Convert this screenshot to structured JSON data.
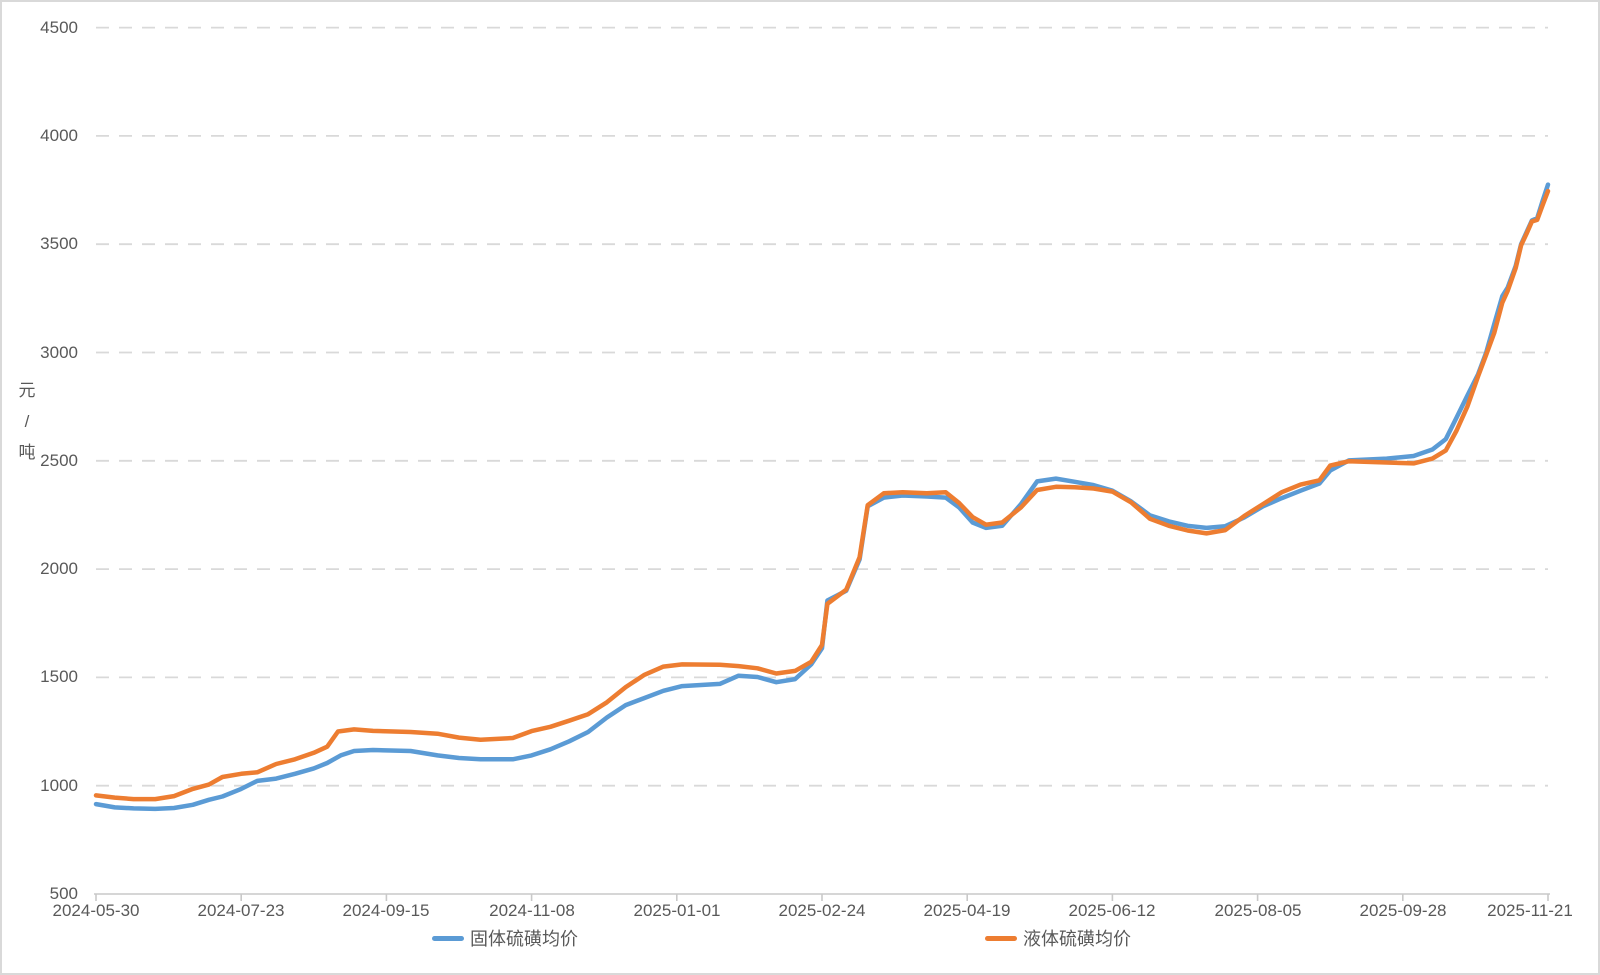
{
  "chart_data": {
    "type": "line",
    "title": "",
    "y_axis": {
      "title": "元\n/\n吨",
      "min": 500,
      "max": 4500,
      "step": 500,
      "ticks": [
        "4500",
        "4000",
        "3500",
        "3000",
        "2500",
        "2000",
        "1500",
        "1000",
        "500"
      ]
    },
    "x_axis": {
      "start": "2024-05-30",
      "end": "2025-11-21",
      "ticks": [
        "2024-05-30",
        "2024-07-23",
        "2024-09-15",
        "2024-11-08",
        "2025-01-01",
        "2025-02-24",
        "2025-04-19",
        "2025-06-12",
        "2025-08-05",
        "2025-09-28",
        "2025-11-21"
      ]
    },
    "grid": "horizontal-dashed",
    "legend_position": "bottom",
    "colors": {
      "solid_series": "#5B9BD5",
      "liquid_series": "#ED7D31",
      "axis_text": "#595959",
      "gridline": "#D9D9D9",
      "axis_line": "#C9C9C9",
      "frame": "#D9D9D9"
    },
    "series": [
      {
        "name": "固体硫磺均价",
        "color": "#5B9BD5",
        "points": [
          [
            "2024-05-30",
            915
          ],
          [
            "2024-06-06",
            900
          ],
          [
            "2024-06-13",
            895
          ],
          [
            "2024-06-21",
            893
          ],
          [
            "2024-06-28",
            897
          ],
          [
            "2024-07-05",
            912
          ],
          [
            "2024-07-11",
            935
          ],
          [
            "2024-07-16",
            950
          ],
          [
            "2024-07-23",
            985
          ],
          [
            "2024-07-29",
            1022
          ],
          [
            "2024-08-05",
            1033
          ],
          [
            "2024-08-12",
            1055
          ],
          [
            "2024-08-19",
            1080
          ],
          [
            "2024-08-24",
            1105
          ],
          [
            "2024-08-29",
            1140
          ],
          [
            "2024-09-03",
            1160
          ],
          [
            "2024-09-10",
            1165
          ],
          [
            "2024-09-24",
            1160
          ],
          [
            "2024-10-04",
            1140
          ],
          [
            "2024-10-12",
            1128
          ],
          [
            "2024-10-20",
            1122
          ],
          [
            "2024-11-01",
            1122
          ],
          [
            "2024-11-08",
            1140
          ],
          [
            "2024-11-15",
            1168
          ],
          [
            "2024-11-22",
            1205
          ],
          [
            "2024-11-29",
            1248
          ],
          [
            "2024-12-06",
            1315
          ],
          [
            "2024-12-13",
            1372
          ],
          [
            "2024-12-20",
            1405
          ],
          [
            "2024-12-27",
            1438
          ],
          [
            "2025-01-03",
            1460
          ],
          [
            "2025-01-17",
            1470
          ],
          [
            "2025-01-24",
            1508
          ],
          [
            "2025-01-31",
            1502
          ],
          [
            "2025-02-07",
            1478
          ],
          [
            "2025-02-14",
            1492
          ],
          [
            "2025-02-20",
            1560
          ],
          [
            "2025-02-24",
            1635
          ],
          [
            "2025-02-26",
            1855
          ],
          [
            "2025-03-05",
            1900
          ],
          [
            "2025-03-10",
            2045
          ],
          [
            "2025-03-13",
            2290
          ],
          [
            "2025-03-19",
            2330
          ],
          [
            "2025-03-26",
            2340
          ],
          [
            "2025-04-04",
            2335
          ],
          [
            "2025-04-11",
            2330
          ],
          [
            "2025-04-16",
            2285
          ],
          [
            "2025-04-21",
            2215
          ],
          [
            "2025-04-26",
            2190
          ],
          [
            "2025-05-02",
            2200
          ],
          [
            "2025-05-09",
            2300
          ],
          [
            "2025-05-15",
            2405
          ],
          [
            "2025-05-22",
            2418
          ],
          [
            "2025-05-29",
            2403
          ],
          [
            "2025-06-05",
            2388
          ],
          [
            "2025-06-12",
            2362
          ],
          [
            "2025-06-19",
            2312
          ],
          [
            "2025-06-26",
            2248
          ],
          [
            "2025-07-03",
            2220
          ],
          [
            "2025-07-10",
            2200
          ],
          [
            "2025-07-17",
            2190
          ],
          [
            "2025-07-24",
            2198
          ],
          [
            "2025-07-31",
            2238
          ],
          [
            "2025-08-07",
            2290
          ],
          [
            "2025-08-14",
            2328
          ],
          [
            "2025-08-21",
            2362
          ],
          [
            "2025-08-28",
            2395
          ],
          [
            "2025-09-01",
            2455
          ],
          [
            "2025-09-08",
            2502
          ],
          [
            "2025-09-22",
            2510
          ],
          [
            "2025-10-02",
            2522
          ],
          [
            "2025-10-09",
            2552
          ],
          [
            "2025-10-14",
            2600
          ],
          [
            "2025-10-18",
            2700
          ],
          [
            "2025-10-22",
            2800
          ],
          [
            "2025-10-26",
            2900
          ],
          [
            "2025-10-29",
            3000
          ],
          [
            "2025-11-01",
            3130
          ],
          [
            "2025-11-04",
            3260
          ],
          [
            "2025-11-06",
            3300
          ],
          [
            "2025-11-09",
            3400
          ],
          [
            "2025-11-11",
            3500
          ],
          [
            "2025-11-13",
            3555
          ],
          [
            "2025-11-15",
            3610
          ],
          [
            "2025-11-17",
            3620
          ],
          [
            "2025-11-19",
            3700
          ],
          [
            "2025-11-21",
            3775
          ]
        ]
      },
      {
        "name": "液体硫磺均价",
        "color": "#ED7D31",
        "points": [
          [
            "2024-05-30",
            955
          ],
          [
            "2024-06-06",
            945
          ],
          [
            "2024-06-13",
            938
          ],
          [
            "2024-06-21",
            938
          ],
          [
            "2024-06-28",
            952
          ],
          [
            "2024-07-05",
            985
          ],
          [
            "2024-07-11",
            1005
          ],
          [
            "2024-07-16",
            1040
          ],
          [
            "2024-07-23",
            1055
          ],
          [
            "2024-07-29",
            1062
          ],
          [
            "2024-08-05",
            1100
          ],
          [
            "2024-08-12",
            1122
          ],
          [
            "2024-08-19",
            1152
          ],
          [
            "2024-08-24",
            1180
          ],
          [
            "2024-08-28",
            1250
          ],
          [
            "2024-09-03",
            1260
          ],
          [
            "2024-09-10",
            1253
          ],
          [
            "2024-09-24",
            1248
          ],
          [
            "2024-10-04",
            1240
          ],
          [
            "2024-10-12",
            1222
          ],
          [
            "2024-10-20",
            1212
          ],
          [
            "2024-11-01",
            1220
          ],
          [
            "2024-11-08",
            1252
          ],
          [
            "2024-11-15",
            1272
          ],
          [
            "2024-11-22",
            1300
          ],
          [
            "2024-11-29",
            1330
          ],
          [
            "2024-12-06",
            1385
          ],
          [
            "2024-12-13",
            1455
          ],
          [
            "2024-12-20",
            1512
          ],
          [
            "2024-12-27",
            1550
          ],
          [
            "2025-01-03",
            1560
          ],
          [
            "2025-01-17",
            1558
          ],
          [
            "2025-01-24",
            1552
          ],
          [
            "2025-01-31",
            1542
          ],
          [
            "2025-02-07",
            1518
          ],
          [
            "2025-02-14",
            1530
          ],
          [
            "2025-02-20",
            1572
          ],
          [
            "2025-02-24",
            1650
          ],
          [
            "2025-02-26",
            1840
          ],
          [
            "2025-03-05",
            1905
          ],
          [
            "2025-03-10",
            2055
          ],
          [
            "2025-03-13",
            2295
          ],
          [
            "2025-03-19",
            2350
          ],
          [
            "2025-03-26",
            2355
          ],
          [
            "2025-04-04",
            2350
          ],
          [
            "2025-04-11",
            2355
          ],
          [
            "2025-04-16",
            2305
          ],
          [
            "2025-04-21",
            2240
          ],
          [
            "2025-04-26",
            2205
          ],
          [
            "2025-05-02",
            2215
          ],
          [
            "2025-05-09",
            2285
          ],
          [
            "2025-05-15",
            2365
          ],
          [
            "2025-05-22",
            2380
          ],
          [
            "2025-05-29",
            2378
          ],
          [
            "2025-06-05",
            2372
          ],
          [
            "2025-06-12",
            2358
          ],
          [
            "2025-06-19",
            2308
          ],
          [
            "2025-06-26",
            2232
          ],
          [
            "2025-07-03",
            2200
          ],
          [
            "2025-07-10",
            2178
          ],
          [
            "2025-07-17",
            2165
          ],
          [
            "2025-07-24",
            2180
          ],
          [
            "2025-07-31",
            2245
          ],
          [
            "2025-08-07",
            2300
          ],
          [
            "2025-08-14",
            2355
          ],
          [
            "2025-08-21",
            2390
          ],
          [
            "2025-08-28",
            2410
          ],
          [
            "2025-09-01",
            2478
          ],
          [
            "2025-09-08",
            2498
          ],
          [
            "2025-09-22",
            2492
          ],
          [
            "2025-10-02",
            2488
          ],
          [
            "2025-10-09",
            2510
          ],
          [
            "2025-10-14",
            2548
          ],
          [
            "2025-10-18",
            2640
          ],
          [
            "2025-10-22",
            2750
          ],
          [
            "2025-10-26",
            2890
          ],
          [
            "2025-10-29",
            2990
          ],
          [
            "2025-11-01",
            3090
          ],
          [
            "2025-11-04",
            3230
          ],
          [
            "2025-11-06",
            3285
          ],
          [
            "2025-11-09",
            3390
          ],
          [
            "2025-11-11",
            3495
          ],
          [
            "2025-11-13",
            3548
          ],
          [
            "2025-11-15",
            3605
          ],
          [
            "2025-11-17",
            3612
          ],
          [
            "2025-11-19",
            3680
          ],
          [
            "2025-11-21",
            3745
          ]
        ]
      }
    ]
  }
}
